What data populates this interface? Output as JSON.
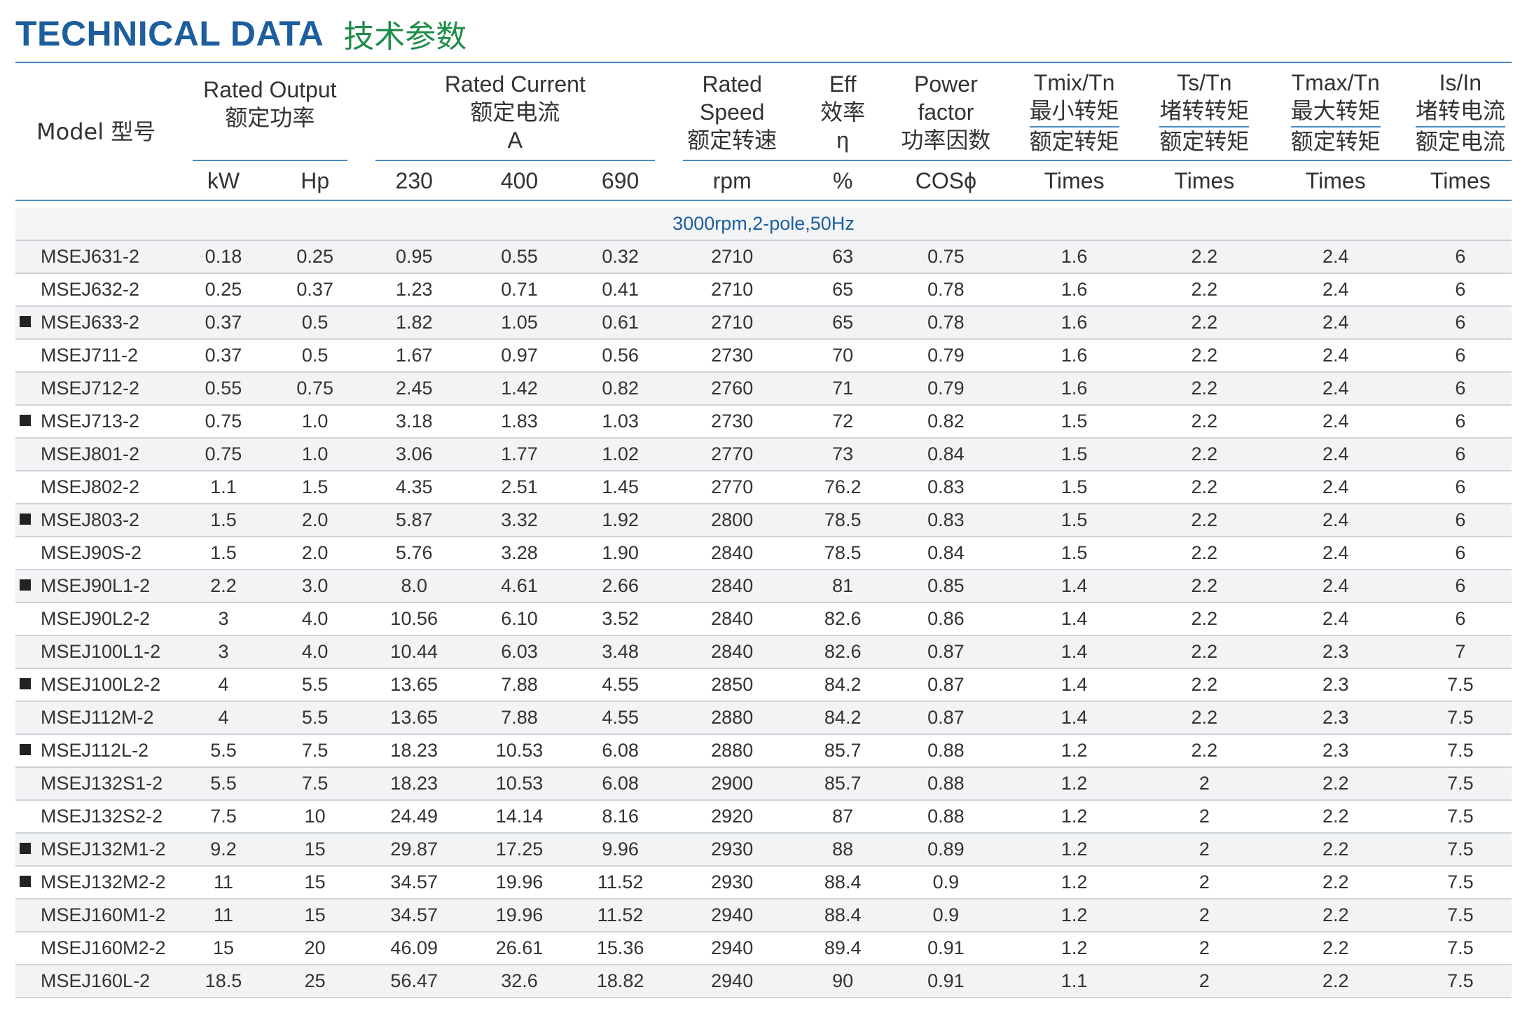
{
  "title": {
    "en": "TECHNICAL DATA",
    "cn": "技术参数"
  },
  "headers": {
    "model": "Model 型号",
    "rated_output": {
      "en": "Rated Output",
      "cn": "额定功率"
    },
    "rated_current": {
      "en": "Rated Current",
      "cn": "额定电流",
      "unit": "A"
    },
    "rated_speed": {
      "l1": "Rated",
      "l2": "Speed",
      "cn": "额定转速"
    },
    "eff": {
      "en": "Eff",
      "cn": "效率",
      "sym": "η"
    },
    "power_factor": {
      "l1": "Power",
      "l2": "factor",
      "cn": "功率因数"
    },
    "tmin": {
      "en": "Tmix/Tn",
      "cn1": "最小转矩",
      "cn2": "额定转矩"
    },
    "ts": {
      "en": "Ts/Tn",
      "cn1": "堵转转矩",
      "cn2": "额定转矩"
    },
    "tmax": {
      "en": "Tmax/Tn",
      "cn1": "最大转矩",
      "cn2": "额定转矩"
    },
    "isin": {
      "en": "Is/In",
      "cn1": "堵转电流",
      "cn2": "额定电流"
    },
    "units": [
      "kW",
      "Hp",
      "230",
      "400",
      "690",
      "rpm",
      "%",
      "COSϕ",
      "Times",
      "Times",
      "Times",
      "Times"
    ]
  },
  "section_label": "3000rpm,2-pole,50Hz",
  "rows": [
    {
      "marked": false,
      "cells": [
        "MSEJ631-2",
        "0.18",
        "0.25",
        "0.95",
        "0.55",
        "0.32",
        "2710",
        "63",
        "0.75",
        "1.6",
        "2.2",
        "2.4",
        "6"
      ]
    },
    {
      "marked": false,
      "cells": [
        "MSEJ632-2",
        "0.25",
        "0.37",
        "1.23",
        "0.71",
        "0.41",
        "2710",
        "65",
        "0.78",
        "1.6",
        "2.2",
        "2.4",
        "6"
      ]
    },
    {
      "marked": true,
      "cells": [
        "MSEJ633-2",
        "0.37",
        "0.5",
        "1.82",
        "1.05",
        "0.61",
        "2710",
        "65",
        "0.78",
        "1.6",
        "2.2",
        "2.4",
        "6"
      ]
    },
    {
      "marked": false,
      "cells": [
        "MSEJ711-2",
        "0.37",
        "0.5",
        "1.67",
        "0.97",
        "0.56",
        "2730",
        "70",
        "0.79",
        "1.6",
        "2.2",
        "2.4",
        "6"
      ]
    },
    {
      "marked": false,
      "cells": [
        "MSEJ712-2",
        "0.55",
        "0.75",
        "2.45",
        "1.42",
        "0.82",
        "2760",
        "71",
        "0.79",
        "1.6",
        "2.2",
        "2.4",
        "6"
      ]
    },
    {
      "marked": true,
      "cells": [
        "MSEJ713-2",
        "0.75",
        "1.0",
        "3.18",
        "1.83",
        "1.03",
        "2730",
        "72",
        "0.82",
        "1.5",
        "2.2",
        "2.4",
        "6"
      ]
    },
    {
      "marked": false,
      "cells": [
        "MSEJ801-2",
        "0.75",
        "1.0",
        "3.06",
        "1.77",
        "1.02",
        "2770",
        "73",
        "0.84",
        "1.5",
        "2.2",
        "2.4",
        "6"
      ]
    },
    {
      "marked": false,
      "cells": [
        "MSEJ802-2",
        "1.1",
        "1.5",
        "4.35",
        "2.51",
        "1.45",
        "2770",
        "76.2",
        "0.83",
        "1.5",
        "2.2",
        "2.4",
        "6"
      ]
    },
    {
      "marked": true,
      "cells": [
        "MSEJ803-2",
        "1.5",
        "2.0",
        "5.87",
        "3.32",
        "1.92",
        "2800",
        "78.5",
        "0.83",
        "1.5",
        "2.2",
        "2.4",
        "6"
      ]
    },
    {
      "marked": false,
      "cells": [
        "MSEJ90S-2",
        "1.5",
        "2.0",
        "5.76",
        "3.28",
        "1.90",
        "2840",
        "78.5",
        "0.84",
        "1.5",
        "2.2",
        "2.4",
        "6"
      ]
    },
    {
      "marked": true,
      "cells": [
        "MSEJ90L1-2",
        "2.2",
        "3.0",
        "8.0",
        "4.61",
        "2.66",
        "2840",
        "81",
        "0.85",
        "1.4",
        "2.2",
        "2.4",
        "6"
      ]
    },
    {
      "marked": false,
      "cells": [
        "MSEJ90L2-2",
        "3",
        "4.0",
        "10.56",
        "6.10",
        "3.52",
        "2840",
        "82.6",
        "0.86",
        "1.4",
        "2.2",
        "2.4",
        "6"
      ]
    },
    {
      "marked": false,
      "cells": [
        "MSEJ100L1-2",
        "3",
        "4.0",
        "10.44",
        "6.03",
        "3.48",
        "2840",
        "82.6",
        "0.87",
        "1.4",
        "2.2",
        "2.3",
        "7"
      ]
    },
    {
      "marked": true,
      "cells": [
        "MSEJ100L2-2",
        "4",
        "5.5",
        "13.65",
        "7.88",
        "4.55",
        "2850",
        "84.2",
        "0.87",
        "1.4",
        "2.2",
        "2.3",
        "7.5"
      ]
    },
    {
      "marked": false,
      "cells": [
        "MSEJ112M-2",
        "4",
        "5.5",
        "13.65",
        "7.88",
        "4.55",
        "2880",
        "84.2",
        "0.87",
        "1.4",
        "2.2",
        "2.3",
        "7.5"
      ]
    },
    {
      "marked": true,
      "cells": [
        "MSEJ112L-2",
        "5.5",
        "7.5",
        "18.23",
        "10.53",
        "6.08",
        "2880",
        "85.7",
        "0.88",
        "1.2",
        "2.2",
        "2.3",
        "7.5"
      ]
    },
    {
      "marked": false,
      "cells": [
        "MSEJ132S1-2",
        "5.5",
        "7.5",
        "18.23",
        "10.53",
        "6.08",
        "2900",
        "85.7",
        "0.88",
        "1.2",
        "2",
        "2.2",
        "7.5"
      ]
    },
    {
      "marked": false,
      "cells": [
        "MSEJ132S2-2",
        "7.5",
        "10",
        "24.49",
        "14.14",
        "8.16",
        "2920",
        "87",
        "0.88",
        "1.2",
        "2",
        "2.2",
        "7.5"
      ]
    },
    {
      "marked": true,
      "cells": [
        "MSEJ132M1-2",
        "9.2",
        "15",
        "29.87",
        "17.25",
        "9.96",
        "2930",
        "88",
        "0.89",
        "1.2",
        "2",
        "2.2",
        "7.5"
      ]
    },
    {
      "marked": true,
      "cells": [
        "MSEJ132M2-2",
        "11",
        "15",
        "34.57",
        "19.96",
        "11.52",
        "2930",
        "88.4",
        "0.9",
        "1.2",
        "2",
        "2.2",
        "7.5"
      ]
    },
    {
      "marked": false,
      "cells": [
        "MSEJ160M1-2",
        "11",
        "15",
        "34.57",
        "19.96",
        "11.52",
        "2940",
        "88.4",
        "0.9",
        "1.2",
        "2",
        "2.2",
        "7.5"
      ]
    },
    {
      "marked": false,
      "cells": [
        "MSEJ160M2-2",
        "15",
        "20",
        "46.09",
        "26.61",
        "15.36",
        "2940",
        "89.4",
        "0.91",
        "1.2",
        "2",
        "2.2",
        "7.5"
      ]
    },
    {
      "marked": false,
      "cells": [
        "MSEJ160L-2",
        "18.5",
        "25",
        "56.47",
        "32.6",
        "18.82",
        "2940",
        "90",
        "0.91",
        "1.1",
        "2",
        "2.2",
        "7.5"
      ]
    }
  ]
}
